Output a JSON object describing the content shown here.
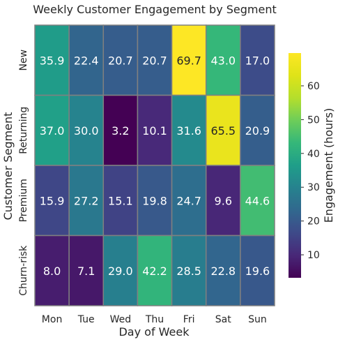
{
  "chart_data": {
    "type": "heatmap",
    "title": "Weekly Customer Engagement by Segment",
    "xlabel": "Day of Week",
    "ylabel": "Customer Segment",
    "x_categories": [
      "Mon",
      "Tue",
      "Wed",
      "Thu",
      "Fri",
      "Sat",
      "Sun"
    ],
    "y_categories": [
      "New",
      "Returning",
      "Premium",
      "Churn-risk"
    ],
    "values": [
      [
        35.9,
        22.4,
        20.7,
        20.7,
        69.7,
        43.0,
        17.0
      ],
      [
        37.0,
        30.0,
        3.2,
        10.1,
        31.6,
        65.5,
        20.9
      ],
      [
        15.9,
        27.2,
        15.1,
        19.8,
        24.7,
        9.6,
        44.6
      ],
      [
        8.0,
        7.1,
        29.0,
        42.2,
        28.5,
        22.8,
        19.6
      ]
    ],
    "colormap": "viridis",
    "cell_border_color": "#808080",
    "value_range": [
      3.2,
      69.7
    ],
    "colorbar": {
      "label": "Engagement (hours)",
      "ticks": [
        10,
        20,
        30,
        40,
        50,
        60
      ]
    }
  }
}
